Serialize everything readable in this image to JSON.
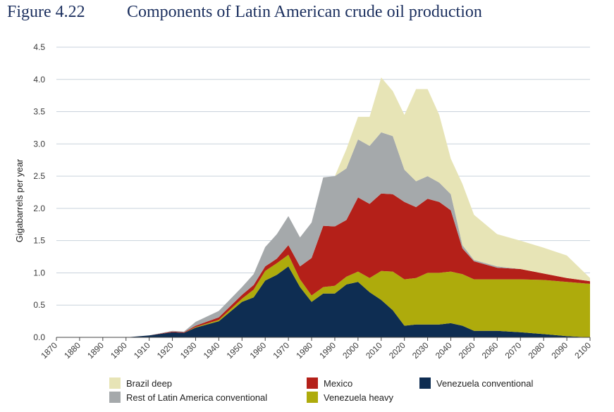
{
  "figure": {
    "number": "Figure 4.22",
    "title": "Components of Latin American crude oil production"
  },
  "legend": {
    "items": [
      {
        "label": "Brazil deep",
        "color": "#e7e4b6"
      },
      {
        "label": "Mexico",
        "color": "#b42019"
      },
      {
        "label": "Venezuela conventional",
        "color": "#0e2d52"
      },
      {
        "label": "Rest of Latin America conventional",
        "color": "#a5a9ab"
      },
      {
        "label": "Venezuela heavy",
        "color": "#aeab0c"
      }
    ]
  },
  "chart_data": {
    "type": "area",
    "stacked": true,
    "title": "Components of Latin American crude oil production",
    "xlabel": "",
    "ylabel": "Gigabarrels per year",
    "xlim": [
      1870,
      2100
    ],
    "ylim": [
      0,
      4.5
    ],
    "x_ticks": [
      "1870",
      "1880",
      "1890",
      "1900",
      "1910",
      "1920",
      "1930",
      "1940",
      "1950",
      "1960",
      "1970",
      "1980",
      "1990",
      "2000",
      "2010",
      "2020",
      "2030",
      "2040",
      "2050",
      "2060",
      "2070",
      "2080",
      "2090",
      "2100"
    ],
    "y_ticks": [
      "0.0",
      "0.5",
      "1.0",
      "1.5",
      "2.0",
      "2.5",
      "3.0",
      "3.5",
      "4.0",
      "4.5"
    ],
    "grid": true,
    "legend_position": "bottom",
    "x": [
      1900,
      1910,
      1920,
      1925,
      1930,
      1940,
      1950,
      1955,
      1960,
      1965,
      1970,
      1975,
      1980,
      1985,
      1990,
      1995,
      2000,
      2005,
      2010,
      2015,
      2020,
      2025,
      2030,
      2035,
      2040,
      2045,
      2050,
      2060,
      2070,
      2080,
      2090,
      2100
    ],
    "series": [
      {
        "name": "Venezuela conventional",
        "color": "#0e2d52",
        "values": [
          0,
          0.03,
          0.08,
          0.07,
          0.15,
          0.25,
          0.55,
          0.62,
          0.88,
          0.97,
          1.1,
          0.78,
          0.55,
          0.68,
          0.68,
          0.82,
          0.86,
          0.7,
          0.58,
          0.42,
          0.18,
          0.2,
          0.2,
          0.2,
          0.22,
          0.18,
          0.1,
          0.1,
          0.08,
          0.05,
          0.02,
          0
        ]
      },
      {
        "name": "Venezuela heavy",
        "color": "#aeab0c",
        "values": [
          0,
          0,
          0,
          0,
          0.01,
          0.02,
          0.05,
          0.12,
          0.15,
          0.18,
          0.18,
          0.12,
          0.1,
          0.1,
          0.12,
          0.12,
          0.16,
          0.22,
          0.45,
          0.6,
          0.72,
          0.72,
          0.8,
          0.8,
          0.8,
          0.8,
          0.8,
          0.8,
          0.82,
          0.84,
          0.84,
          0.83
        ]
      },
      {
        "name": "Mexico",
        "color": "#b42019",
        "values": [
          0,
          0,
          0.01,
          0.01,
          0.02,
          0.04,
          0.06,
          0.07,
          0.07,
          0.07,
          0.15,
          0.2,
          0.58,
          0.95,
          0.92,
          0.88,
          1.15,
          1.15,
          1.2,
          1.2,
          1.2,
          1.1,
          1.15,
          1.1,
          0.95,
          0.4,
          0.28,
          0.18,
          0.16,
          0.1,
          0.06,
          0.04
        ]
      },
      {
        "name": "Rest of Latin America conventional",
        "color": "#a5a9ab",
        "values": [
          0,
          0,
          0.01,
          0.01,
          0.06,
          0.1,
          0.12,
          0.17,
          0.3,
          0.38,
          0.45,
          0.45,
          0.55,
          0.75,
          0.78,
          0.8,
          0.9,
          0.9,
          0.95,
          0.9,
          0.5,
          0.4,
          0.35,
          0.3,
          0.25,
          0.05,
          0.02,
          0.02,
          0,
          0,
          0,
          0
        ]
      },
      {
        "name": "Brazil deep",
        "color": "#e7e4b6",
        "values": [
          0,
          0,
          0,
          0,
          0,
          0,
          0,
          0,
          0,
          0,
          0,
          0,
          0,
          0,
          0,
          0.3,
          0.35,
          0.45,
          0.85,
          0.7,
          0.85,
          1.43,
          1.35,
          1.05,
          0.55,
          0.95,
          0.7,
          0.5,
          0.44,
          0.4,
          0.35,
          0.05
        ]
      }
    ]
  }
}
